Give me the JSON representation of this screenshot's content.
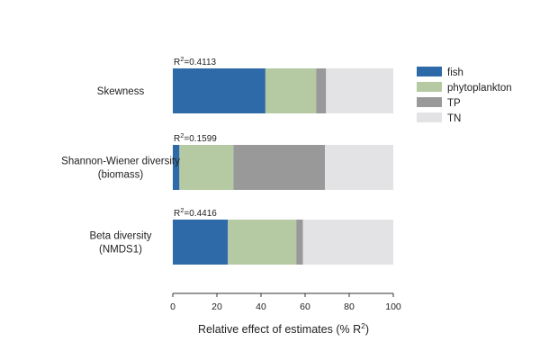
{
  "chart_data": {
    "type": "bar",
    "orientation": "horizontal",
    "stacked": true,
    "categories": [
      {
        "lines": [
          "Skewness"
        ],
        "r2_prefix": "R",
        "r2_sup": "2",
        "r2_value": "=0.4113"
      },
      {
        "lines": [
          "Shannon-Wiener diversity",
          "(biomass)"
        ],
        "r2_prefix": "R",
        "r2_sup": "2",
        "r2_value": "=0.1599"
      },
      {
        "lines": [
          "Beta diversity",
          "(NMDS1)"
        ],
        "r2_prefix": "R",
        "r2_sup": "2",
        "r2_value": "=0.4416"
      }
    ],
    "series": [
      {
        "name": "fish",
        "color": "#2f6aa8",
        "values": [
          42,
          3,
          25
        ]
      },
      {
        "name": "phytoplankton",
        "color": "#b5c9a3",
        "values": [
          23,
          24.5,
          31
        ]
      },
      {
        "name": "TP",
        "color": "#999999",
        "values": [
          4.5,
          41.5,
          3
        ]
      },
      {
        "name": "TN",
        "color": "#e3e3e5",
        "values": [
          30.5,
          31,
          41
        ]
      }
    ],
    "xlabel_main": "Relative effect of estimates (% R",
    "xlabel_sup": "2",
    "xlabel_end": ")",
    "xlim": [
      0,
      100
    ],
    "xticks": [
      0,
      20,
      40,
      60,
      80,
      100
    ],
    "xtick_labels": [
      "0",
      "20",
      "40",
      "60",
      "80",
      "100"
    ],
    "legend_position": "right"
  }
}
